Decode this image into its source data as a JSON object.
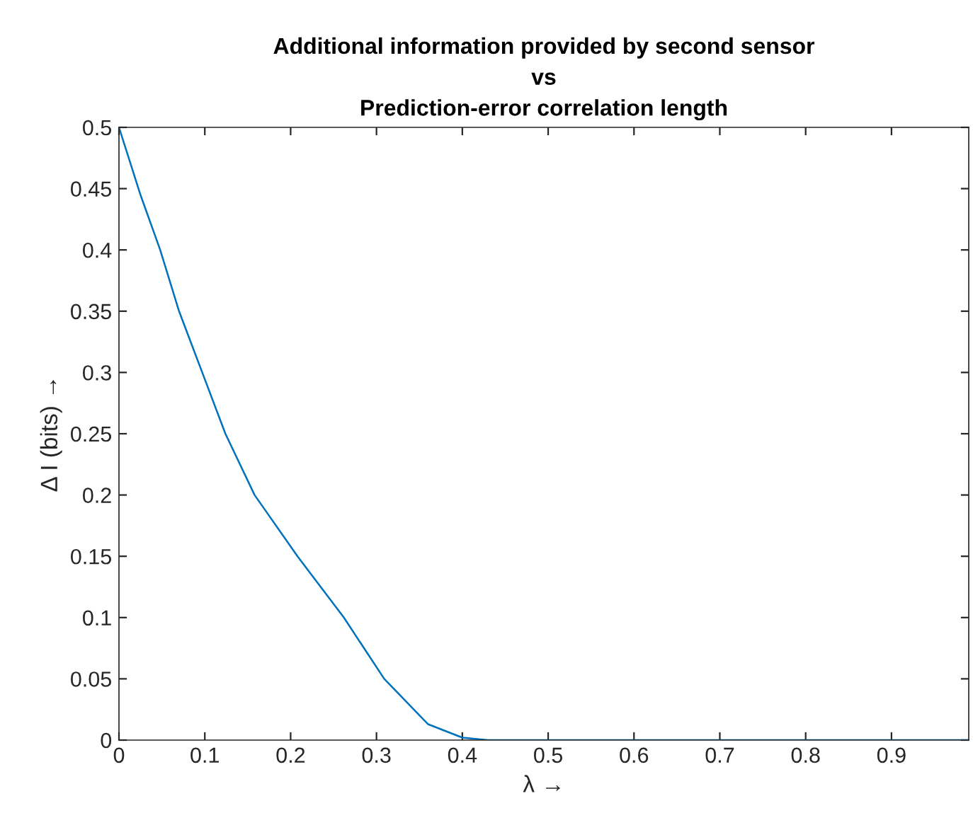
{
  "chart_data": {
    "type": "line",
    "title": "Additional information provided by second sensor\nvs\nPrediction-error correlation length",
    "xlabel": "λ →",
    "ylabel": "Δ I (bits) →",
    "series": [
      {
        "color": "#0072bd",
        "x": [
          0,
          0.025,
          0.048,
          0.07,
          0.097,
          0.124,
          0.158,
          0.208,
          0.262,
          0.309,
          0.36,
          0.4,
          0.43,
          0.5,
          0.99
        ],
        "values": [
          0.5,
          0.445,
          0.4,
          0.35,
          0.3,
          0.25,
          0.2,
          0.15,
          0.1,
          0.05,
          0.013,
          0.002,
          0,
          0,
          0
        ]
      }
    ],
    "xlim": [
      0,
      0.99
    ],
    "xticks": [
      0,
      0.1,
      0.2,
      0.3,
      0.4,
      0.5,
      0.6,
      0.7,
      0.8,
      0.9
    ],
    "ylim": [
      0,
      0.5
    ],
    "yticks": [
      0,
      0.05,
      0.1,
      0.15,
      0.2,
      0.25,
      0.3,
      0.35,
      0.4,
      0.45,
      0.5
    ],
    "grid": false,
    "legend": false,
    "marker": "none",
    "line_style": "solid"
  }
}
